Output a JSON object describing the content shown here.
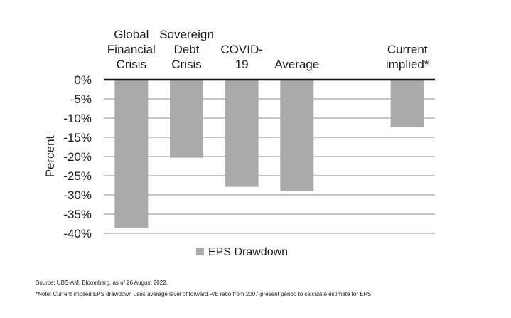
{
  "chart_data": {
    "type": "bar",
    "title": "",
    "xlabel": "",
    "ylabel": "Percent",
    "ylim": [
      -40,
      0
    ],
    "yticks": [
      0,
      -5,
      -10,
      -15,
      -20,
      -25,
      -30,
      -35,
      -40
    ],
    "ytick_labels": [
      "0%",
      "-5%",
      "-10%",
      "-15%",
      "-20%",
      "-25%",
      "-30%",
      "-35%",
      "-40%"
    ],
    "categories": [
      [
        "Global",
        "Financial",
        "Crisis"
      ],
      [
        "Sovereign",
        "Debt",
        "Crisis"
      ],
      [
        "COVID-",
        "19"
      ],
      [
        "Average"
      ],
      [],
      [
        "Current",
        "implied*"
      ]
    ],
    "values": [
      -38.5,
      -20.3,
      -27.9,
      -28.9,
      null,
      -12.4
    ],
    "series_name": "EPS Drawdown",
    "legend_position": "bottom-center",
    "bar_color": "#aaaaaa",
    "grid": true
  },
  "footnotes": {
    "source": "Source: UBS-AM, Bloomberg, as of 26 August 2022.",
    "note": "*Note: Current implied EPS drawdown uses average level of forward P/E ratio from 2007-present period to calculate estimate for EPS."
  }
}
